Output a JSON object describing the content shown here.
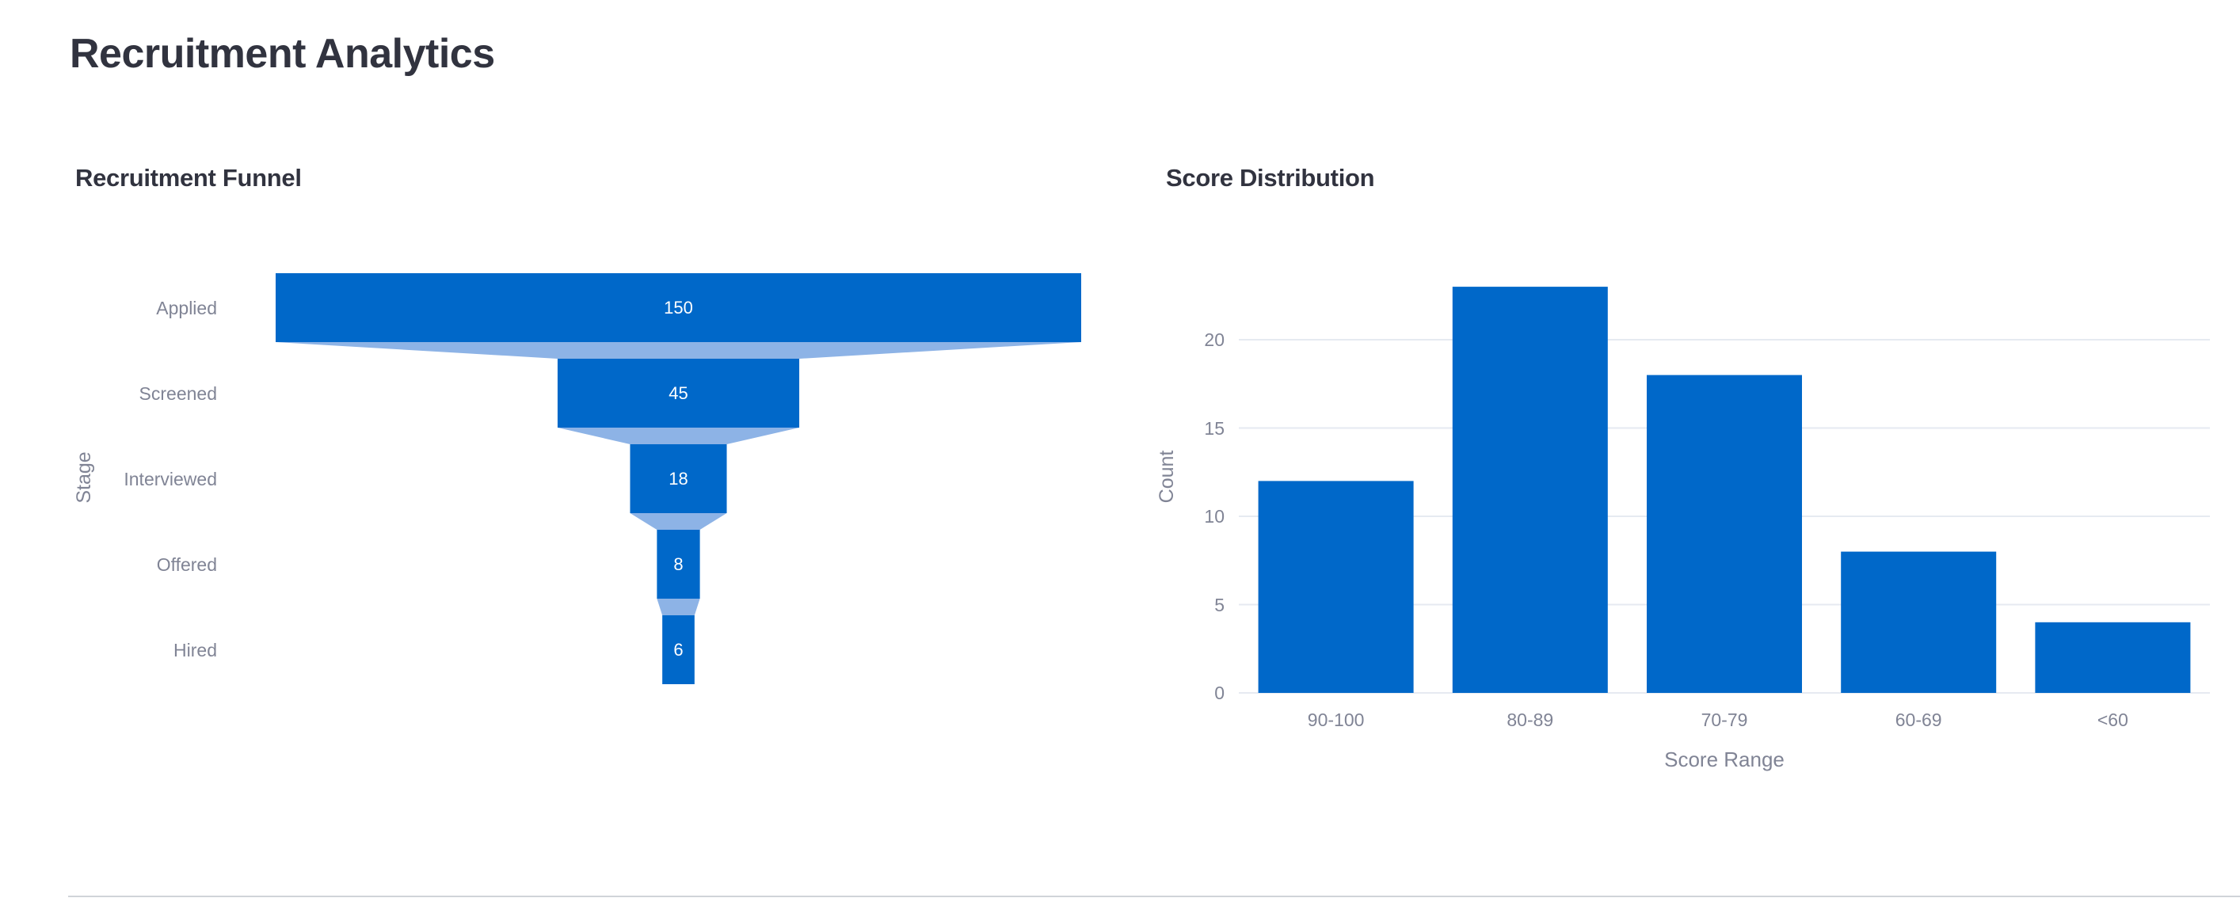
{
  "page": {
    "title": "Recruitment Analytics"
  },
  "funnel": {
    "title": "Recruitment Funnel",
    "y_axis_title": "Stage",
    "bar_color": "#0068c9",
    "connector_color": "#8db3e6",
    "stages": [
      {
        "label": "Applied",
        "value": "150"
      },
      {
        "label": "Screened",
        "value": "45"
      },
      {
        "label": "Interviewed",
        "value": "18"
      },
      {
        "label": "Offered",
        "value": "8"
      },
      {
        "label": "Hired",
        "value": "6"
      }
    ]
  },
  "distribution": {
    "title": "Score Distribution",
    "x_axis_title": "Score Range",
    "y_axis_title": "Count",
    "bar_color": "#0068c9",
    "grid_color": "#e6eaf1",
    "y_ticks": [
      "0",
      "5",
      "10",
      "15",
      "20"
    ],
    "categories": [
      "90-100",
      "80-89",
      "70-79",
      "60-69",
      "<60"
    ]
  },
  "chart_data": [
    {
      "type": "funnel",
      "title": "Recruitment Funnel",
      "ylabel": "Stage",
      "categories": [
        "Applied",
        "Screened",
        "Interviewed",
        "Offered",
        "Hired"
      ],
      "values": [
        150,
        45,
        18,
        8,
        6
      ],
      "data_labels": true,
      "color": "#0068c9"
    },
    {
      "type": "bar",
      "title": "Score Distribution",
      "xlabel": "Score Range",
      "ylabel": "Count",
      "categories": [
        "90-100",
        "80-89",
        "70-79",
        "60-69",
        "<60"
      ],
      "values": [
        12,
        23,
        18,
        8,
        4
      ],
      "ylim": [
        0,
        24.5
      ],
      "y_ticks": [
        0,
        5,
        10,
        15,
        20
      ],
      "grid": true,
      "legend": "none",
      "color": "#0068c9"
    }
  ]
}
